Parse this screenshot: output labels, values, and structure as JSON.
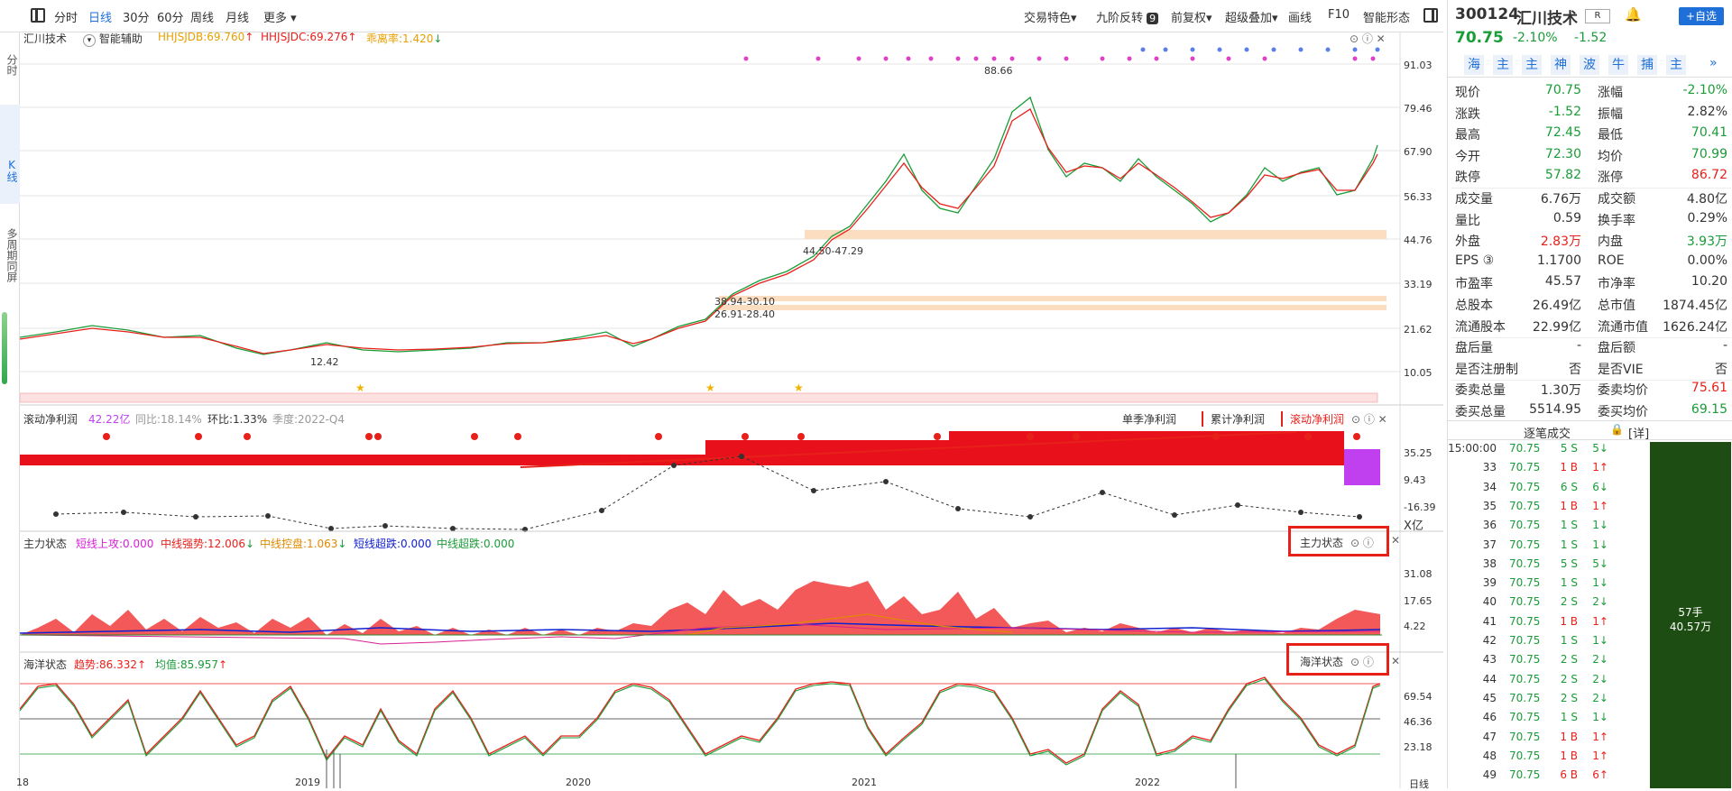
{
  "toolbar": {
    "periods": [
      "分时",
      "日线",
      "30分",
      "60分",
      "周线",
      "月线",
      "更多"
    ],
    "active_period": "日线",
    "right_items": [
      "交易特色",
      "九阶反转",
      "前复权",
      "超级叠加",
      "画线",
      "F10",
      "智能形态"
    ],
    "nine_badge": "9"
  },
  "left_nav": {
    "items": [
      "分时",
      "K线",
      "多周期同屏"
    ],
    "active": "K线"
  },
  "main_panel": {
    "stock_name": "汇川技术",
    "assist_label": "智能辅助",
    "ind1": "HHJSJDB:69.760",
    "ind2": "HHJSJDC:69.276",
    "ind3": "乖离率:1.420",
    "y_labels": [
      "91.03",
      "79.46",
      "67.90",
      "56.33",
      "44.76",
      "33.19",
      "21.62",
      "10.05"
    ],
    "price_labels": {
      "high": "88.66",
      "low": "12.42",
      "zone1": "44.50-47.29",
      "zone2a": "38.94-30.10",
      "zone2b": "26.91-28.40"
    }
  },
  "profit_panel": {
    "title": "滚动净利润",
    "value": "42.22亿",
    "yoy": "同比:18.14%",
    "qoq": "环比:1.33%",
    "season": "季度:2022-Q4",
    "tabs": [
      "单季净利润",
      "累计净利润",
      "滚动净利润"
    ],
    "active_tab": "滚动净利润",
    "y_labels": [
      "35.25",
      "9.43",
      "-16.39"
    ],
    "unit": "X亿"
  },
  "zhuli_panel": {
    "title": "主力状态",
    "items": [
      "短线上攻:0.000",
      "中线强势:12.006",
      "中线控盘:1.063",
      "短线超跌:0.000",
      "中线超跌:0.000"
    ],
    "button": "主力状态",
    "y_labels": [
      "31.08",
      "17.65",
      "4.22"
    ]
  },
  "haiyang_panel": {
    "title": "海洋状态",
    "trend": "趋势:86.332",
    "avg": "均值:85.957",
    "button": "海洋状态",
    "y_labels": [
      "69.54",
      "46.36",
      "23.18"
    ]
  },
  "x_axis": {
    "labels": [
      "18",
      "2019",
      "2020",
      "2021",
      "2022"
    ],
    "period": "日线"
  },
  "quote": {
    "code": "300124",
    "name": "汇川技术",
    "price": "70.75",
    "pct": "-2.10%",
    "change": "-1.52",
    "add_button": "+自选",
    "tags": [
      "海",
      "主",
      "主",
      "神",
      "波",
      "牛",
      "捕",
      "主"
    ],
    "rows": [
      {
        "l1": "现价",
        "v1": "70.75",
        "c1": "green",
        "l2": "涨幅",
        "v2": "-2.10%",
        "c2": "green"
      },
      {
        "l1": "涨跌",
        "v1": "-1.52",
        "c1": "green",
        "l2": "振幅",
        "v2": "2.82%",
        "c2": ""
      },
      {
        "l1": "最高",
        "v1": "72.45",
        "c1": "green",
        "l2": "最低",
        "v2": "70.41",
        "c2": "green"
      },
      {
        "l1": "今开",
        "v1": "72.30",
        "c1": "green",
        "l2": "均价",
        "v2": "70.99",
        "c2": "green"
      },
      {
        "l1": "跌停",
        "v1": "57.82",
        "c1": "green",
        "l2": "涨停",
        "v2": "86.72",
        "c2": "red"
      },
      {
        "l1": "成交量",
        "v1": "6.76万",
        "c1": "",
        "l2": "成交额",
        "v2": "4.80亿",
        "c2": ""
      },
      {
        "l1": "量比",
        "v1": "0.59",
        "c1": "",
        "l2": "换手率",
        "v2": "0.29%",
        "c2": ""
      },
      {
        "l1": "外盘",
        "v1": "2.83万",
        "c1": "red",
        "l2": "内盘",
        "v2": "3.93万",
        "c2": "green"
      },
      {
        "l1": "EPS ③",
        "v1": "1.1700",
        "c1": "",
        "l2": "ROE",
        "v2": "0.00%",
        "c2": ""
      },
      {
        "l1": "市盈率",
        "v1": "45.57",
        "c1": "",
        "l2": "市净率",
        "v2": "10.20",
        "c2": ""
      },
      {
        "l1": "总股本",
        "v1": "26.49亿",
        "c1": "",
        "l2": "总市值",
        "v2": "1874.45亿",
        "c2": ""
      },
      {
        "l1": "流通股本",
        "v1": "22.99亿",
        "c1": "",
        "l2": "流通市值",
        "v2": "1626.24亿",
        "c2": ""
      },
      {
        "l1": "盘后量",
        "v1": "-",
        "c1": "",
        "l2": "盘后额",
        "v2": "-",
        "c2": ""
      },
      {
        "l1": "是否注册制",
        "v1": "否",
        "c1": "",
        "l2": "是否VIE",
        "v2": "否",
        "c2": ""
      },
      {
        "l1": "委卖总量",
        "v1": "1.30万",
        "c1": "",
        "l2": "委卖均价",
        "v2": "75.61",
        "c2": "red"
      },
      {
        "l1": "委买总量",
        "v1": "5514.95",
        "c1": "",
        "l2": "委买均价",
        "v2": "69.15",
        "c2": "green"
      }
    ],
    "ticks_title": "逐笔成交",
    "ticks_detail": "[详]",
    "ticks": [
      {
        "t": "15:00:00",
        "p": "70.75",
        "v": "5 S",
        "n": "5↓",
        "c": "green"
      },
      {
        "t": "33",
        "p": "70.75",
        "v": "1 B",
        "n": "1↑",
        "c": "red"
      },
      {
        "t": "34",
        "p": "70.75",
        "v": "6 S",
        "n": "6↓",
        "c": "green"
      },
      {
        "t": "35",
        "p": "70.75",
        "v": "1 B",
        "n": "1↑",
        "c": "red"
      },
      {
        "t": "36",
        "p": "70.75",
        "v": "1 S",
        "n": "1↓",
        "c": "green"
      },
      {
        "t": "37",
        "p": "70.75",
        "v": "1 S",
        "n": "1↓",
        "c": "green"
      },
      {
        "t": "38",
        "p": "70.75",
        "v": "5 S",
        "n": "5↓",
        "c": "green"
      },
      {
        "t": "39",
        "p": "70.75",
        "v": "1 S",
        "n": "1↓",
        "c": "green"
      },
      {
        "t": "40",
        "p": "70.75",
        "v": "2 S",
        "n": "2↓",
        "c": "green"
      },
      {
        "t": "41",
        "p": "70.75",
        "v": "1 B",
        "n": "1↑",
        "c": "red"
      },
      {
        "t": "42",
        "p": "70.75",
        "v": "1 S",
        "n": "1↓",
        "c": "green"
      },
      {
        "t": "43",
        "p": "70.75",
        "v": "2 S",
        "n": "2↓",
        "c": "green"
      },
      {
        "t": "44",
        "p": "70.75",
        "v": "2 S",
        "n": "2↓",
        "c": "green"
      },
      {
        "t": "45",
        "p": "70.75",
        "v": "2 S",
        "n": "2↓",
        "c": "green"
      },
      {
        "t": "46",
        "p": "70.75",
        "v": "1 S",
        "n": "1↓",
        "c": "green"
      },
      {
        "t": "47",
        "p": "70.75",
        "v": "1 B",
        "n": "1↑",
        "c": "red"
      },
      {
        "t": "48",
        "p": "70.75",
        "v": "1 B",
        "n": "1↑",
        "c": "red"
      },
      {
        "t": "49",
        "p": "70.75",
        "v": "6 B",
        "n": "6↑",
        "c": "red"
      }
    ],
    "vol_bar_1": "57手",
    "vol_bar_2": "40.57万"
  },
  "colors": {
    "up": "#e8201a",
    "down": "#1a9c38",
    "accent": "#1f6fd8"
  }
}
